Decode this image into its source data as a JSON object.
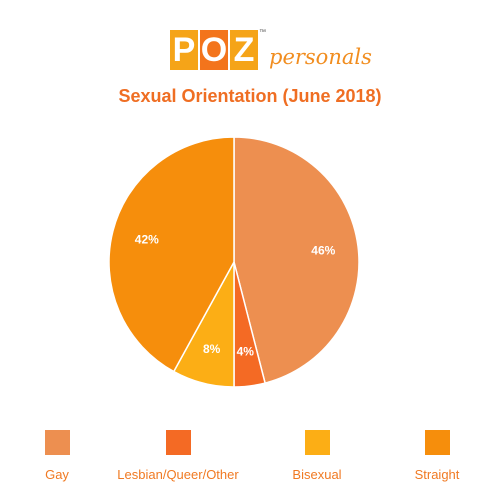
{
  "logo": {
    "letters": [
      "P",
      "O",
      "Z"
    ],
    "trademark": "™",
    "word": "personals"
  },
  "chart_data": {
    "type": "pie",
    "title": "Sexual Orientation (June 2018)",
    "categories": [
      "Gay",
      "Lesbian/Queer/Other",
      "Bisexual",
      "Straight"
    ],
    "values": [
      46,
      4,
      8,
      42
    ],
    "labels": [
      "46%",
      "4%",
      "8%",
      "42%"
    ],
    "colors": [
      "#ed8f50",
      "#f46a24",
      "#fcae15",
      "#f68e0c"
    ],
    "start_angle_deg": 0,
    "direction": "clockwise",
    "legend_position": "bottom"
  }
}
